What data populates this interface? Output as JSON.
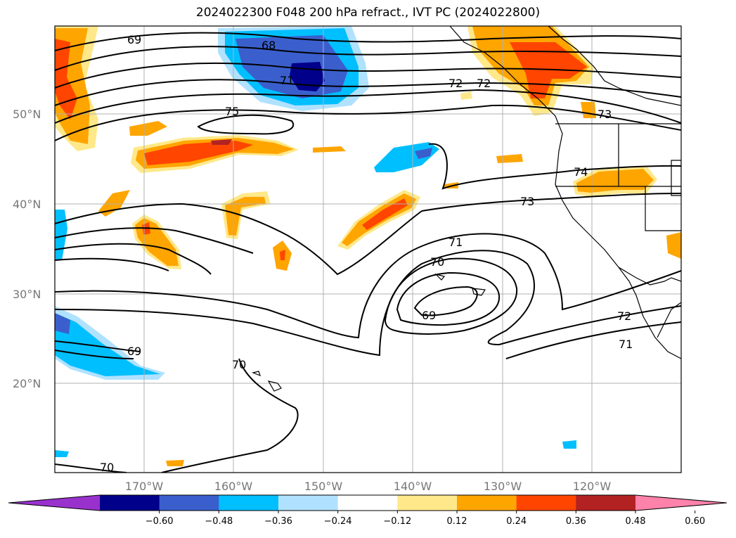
{
  "title": "2024022300 F048 200 hPa refract., IVT PC (2024022800)",
  "map": {
    "lon_labels": [
      "170°W",
      "160°W",
      "150°W",
      "140°W",
      "130°W",
      "120°W"
    ],
    "lat_labels": [
      "50°N",
      "40°N",
      "30°N",
      "20°N"
    ],
    "grid": true
  },
  "contour_labels": [
    "69",
    "68",
    "71",
    "75",
    "72",
    "72",
    "73",
    "74",
    "73",
    "71",
    "70",
    "69",
    "72",
    "71",
    "69",
    "70",
    "70"
  ],
  "colorbar": {
    "extend": "both",
    "ticks": [
      "−0.60",
      "−0.48",
      "−0.36",
      "−0.24",
      "−0.12",
      "0.12",
      "0.24",
      "0.36",
      "0.48",
      "0.60"
    ],
    "colors": [
      "#9932cc",
      "#00008b",
      "#3a5fcd",
      "#00bfff",
      "#b0e2ff",
      "#ffffff",
      "#ffe88a",
      "#ffa500",
      "#ff4500",
      "#b22222",
      "#ff82ab"
    ]
  }
}
